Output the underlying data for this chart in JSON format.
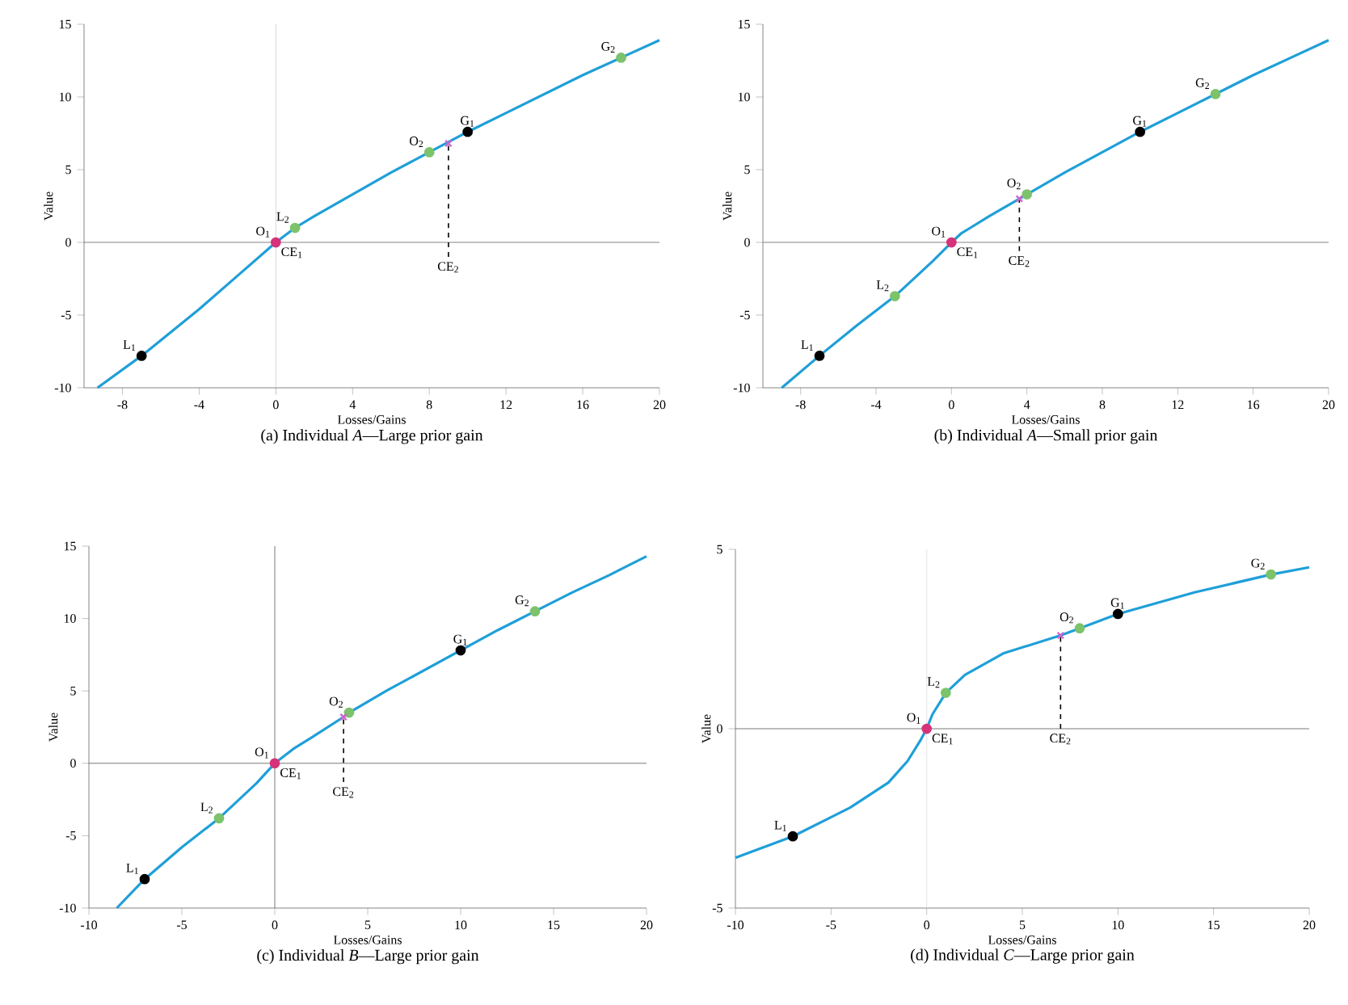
{
  "chart_data": [
    {
      "type": "line",
      "title": "(a) Individual *A*—Large prior gain",
      "xlabel": "Losses/Gains",
      "ylabel": "Value",
      "xlim": [
        -10,
        20
      ],
      "ylim": [
        -10,
        15
      ],
      "xticks": [
        -8,
        -4,
        0,
        4,
        8,
        12,
        16,
        20
      ],
      "yticks": [
        -10,
        -5,
        0,
        5,
        10,
        15
      ],
      "series": [
        {
          "type": "line",
          "color": "#1f9fd8",
          "marker": "none",
          "x": [
            -9.3,
            -7,
            -4,
            -2,
            0,
            1,
            2,
            4,
            6,
            8,
            10,
            12,
            14,
            16,
            18,
            20
          ],
          "values": [
            -10,
            -7.8,
            -4.6,
            -2.3,
            0,
            1.0,
            1.8,
            3.3,
            4.8,
            6.2,
            7.6,
            8.9,
            10.2,
            11.5,
            12.7,
            13.9
          ]
        },
        {
          "type": "scatter",
          "color": "#000000",
          "marker": "circle",
          "x": [
            -7,
            10
          ],
          "values": [
            -7.8,
            7.6
          ]
        },
        {
          "type": "scatter",
          "color": "#7cc36b",
          "marker": "circle",
          "x": [
            1,
            8,
            18
          ],
          "values": [
            1.0,
            6.2,
            12.7
          ]
        },
        {
          "type": "scatter",
          "color": "#d6337a",
          "marker": "circle",
          "x": [
            0
          ],
          "values": [
            0
          ]
        },
        {
          "type": "scatter",
          "color": "#cc66cc",
          "marker": "cross",
          "x": [
            9
          ],
          "values": [
            6.8
          ]
        },
        {
          "type": "line",
          "color": "#000000",
          "marker": "none",
          "line_style": "dashed",
          "x": [
            9,
            9
          ],
          "values": [
            -1,
            6.8
          ]
        }
      ],
      "ref_lines": [
        {
          "axis": "y",
          "value": 0,
          "color": "#666666"
        },
        {
          "axis": "x",
          "value": 0,
          "color": "#cccccc"
        }
      ],
      "annotations": [
        {
          "text": "L$_{1}$",
          "x": -7,
          "y": -7.8
        },
        {
          "text": "L$_{2}$",
          "x": 1,
          "y": 1.0
        },
        {
          "text": "O$_{1}$",
          "x": 0,
          "y": 0
        },
        {
          "text": "CE$_{1}$",
          "x": 0,
          "y": 0
        },
        {
          "text": "O$_{2}$",
          "x": 8,
          "y": 6.2
        },
        {
          "text": "CE$_{2}$",
          "x": 9,
          "y": -1
        },
        {
          "text": "G$_{1}$",
          "x": 10,
          "y": 7.6
        },
        {
          "text": "G$_{2}$",
          "x": 18,
          "y": 12.7
        }
      ]
    },
    {
      "type": "line",
      "title": "(b) Individual *A*—Small prior gain",
      "xlabel": "Losses/Gains",
      "ylabel": "Value",
      "xlim": [
        -10,
        20
      ],
      "ylim": [
        -10,
        15
      ],
      "xticks": [
        -8,
        -4,
        0,
        4,
        8,
        12,
        16,
        20
      ],
      "yticks": [
        -10,
        -5,
        0,
        5,
        10,
        15
      ],
      "series": [
        {
          "type": "line",
          "color": "#1f9fd8",
          "marker": "none",
          "x": [
            -9,
            -7,
            -5,
            -3,
            -1,
            0,
            0.5,
            1,
            2,
            3.6,
            4,
            6,
            8,
            10,
            12,
            14,
            16,
            18,
            20
          ],
          "values": [
            -10,
            -7.8,
            -5.7,
            -3.7,
            -1.3,
            0,
            0.6,
            1.0,
            1.8,
            3.0,
            3.3,
            4.8,
            6.2,
            7.6,
            8.9,
            10.2,
            11.5,
            12.7,
            13.9
          ]
        },
        {
          "type": "scatter",
          "color": "#000000",
          "marker": "circle",
          "x": [
            -7,
            10
          ],
          "values": [
            -7.8,
            7.6
          ]
        },
        {
          "type": "scatter",
          "color": "#7cc36b",
          "marker": "circle",
          "x": [
            -3,
            4,
            14
          ],
          "values": [
            -3.7,
            3.3,
            10.2
          ]
        },
        {
          "type": "scatter",
          "color": "#d6337a",
          "marker": "circle",
          "x": [
            0
          ],
          "values": [
            0
          ]
        },
        {
          "type": "scatter",
          "color": "#cc66cc",
          "marker": "cross",
          "x": [
            3.6
          ],
          "values": [
            3.0
          ]
        },
        {
          "type": "line",
          "color": "#000000",
          "marker": "none",
          "line_style": "dashed",
          "x": [
            3.6,
            3.6
          ],
          "values": [
            -0.6,
            3.0
          ]
        }
      ],
      "ref_lines": [
        {
          "axis": "y",
          "value": 0,
          "color": "#666666"
        }
      ],
      "annotations": [
        {
          "text": "L$_{1}$",
          "x": -7,
          "y": -7.8
        },
        {
          "text": "L$_{2}$",
          "x": -3,
          "y": -3.7
        },
        {
          "text": "O$_{1}$",
          "x": 0,
          "y": 0
        },
        {
          "text": "CE$_{1}$",
          "x": 0,
          "y": 0
        },
        {
          "text": "O$_{2}$",
          "x": 4,
          "y": 3.3
        },
        {
          "text": "CE$_{2}$",
          "x": 3.6,
          "y": -0.6
        },
        {
          "text": "G$_{1}$",
          "x": 10,
          "y": 7.6
        },
        {
          "text": "G$_{2}$",
          "x": 14,
          "y": 10.2
        }
      ]
    },
    {
      "type": "line",
      "title": "(c) Individual *B*—Large prior gain",
      "xlabel": "Losses/Gains",
      "ylabel": "Value",
      "xlim": [
        -10,
        20
      ],
      "ylim": [
        -10,
        15
      ],
      "xticks": [
        -10,
        -5,
        0,
        5,
        10,
        15,
        20
      ],
      "yticks": [
        -10,
        -5,
        0,
        5,
        10,
        15
      ],
      "series": [
        {
          "type": "line",
          "color": "#1f9fd8",
          "marker": "none",
          "x": [
            -8.5,
            -7,
            -5,
            -3,
            -1,
            0,
            1,
            2,
            3.7,
            4,
            6,
            8,
            10,
            12,
            14,
            16,
            18,
            20
          ],
          "values": [
            -10,
            -8,
            -5.8,
            -3.8,
            -1.4,
            0,
            1.0,
            1.8,
            3.2,
            3.5,
            5.0,
            6.4,
            7.8,
            9.2,
            10.5,
            11.8,
            13.0,
            14.3
          ]
        },
        {
          "type": "scatter",
          "color": "#000000",
          "marker": "circle",
          "x": [
            -7,
            10
          ],
          "values": [
            -8,
            7.8
          ]
        },
        {
          "type": "scatter",
          "color": "#7cc36b",
          "marker": "circle",
          "x": [
            -3,
            4,
            14
          ],
          "values": [
            -3.8,
            3.5,
            10.5
          ]
        },
        {
          "type": "scatter",
          "color": "#d6337a",
          "marker": "circle",
          "x": [
            0
          ],
          "values": [
            0
          ]
        },
        {
          "type": "scatter",
          "color": "#cc66cc",
          "marker": "cross",
          "x": [
            3.7
          ],
          "values": [
            3.2
          ]
        },
        {
          "type": "line",
          "color": "#000000",
          "marker": "none",
          "line_style": "dashed",
          "x": [
            3.7,
            3.7
          ],
          "values": [
            -1.3,
            3.2
          ]
        }
      ],
      "ref_lines": [
        {
          "axis": "y",
          "value": 0,
          "color": "#555555"
        },
        {
          "axis": "x",
          "value": 0,
          "color": "#555555"
        }
      ],
      "annotations": [
        {
          "text": "L$_{1}$",
          "x": -7,
          "y": -8
        },
        {
          "text": "L$_{2}$",
          "x": -3,
          "y": -3.8
        },
        {
          "text": "O$_{1}$",
          "x": 0,
          "y": 0
        },
        {
          "text": "CE$_{1}$",
          "x": 0,
          "y": 0
        },
        {
          "text": "O$_{2}$",
          "x": 4,
          "y": 3.5
        },
        {
          "text": "CE$_{2}$",
          "x": 3.7,
          "y": -1.3
        },
        {
          "text": "G$_{1}$",
          "x": 10,
          "y": 7.8
        },
        {
          "text": "G$_{2}$",
          "x": 14,
          "y": 10.5
        }
      ]
    },
    {
      "type": "line",
      "title": "(d) Individual *C*—Large prior gain",
      "xlabel": "Losses/Gains",
      "ylabel": "Value",
      "xlim": [
        -10,
        20
      ],
      "ylim": [
        -5,
        5
      ],
      "xticks": [
        -10,
        -5,
        0,
        5,
        10,
        15,
        20
      ],
      "yticks": [
        -5,
        0,
        5
      ],
      "series": [
        {
          "type": "line",
          "color": "#1f9fd8",
          "marker": "none",
          "x": [
            -10,
            -7,
            -4,
            -2,
            -1,
            -0.3,
            0,
            0.3,
            1,
            2,
            4,
            7,
            8,
            10,
            14,
            18,
            20
          ],
          "values": [
            -3.6,
            -3.0,
            -2.2,
            -1.5,
            -0.9,
            -0.3,
            0,
            0.4,
            1.0,
            1.5,
            2.1,
            2.6,
            2.8,
            3.2,
            3.8,
            4.3,
            4.5
          ]
        },
        {
          "type": "scatter",
          "color": "#000000",
          "marker": "circle",
          "x": [
            -7,
            10
          ],
          "values": [
            -3.0,
            3.2
          ]
        },
        {
          "type": "scatter",
          "color": "#7cc36b",
          "marker": "circle",
          "x": [
            1,
            8,
            18
          ],
          "values": [
            1.0,
            2.8,
            4.3
          ]
        },
        {
          "type": "scatter",
          "color": "#d6337a",
          "marker": "circle",
          "x": [
            0
          ],
          "values": [
            0
          ]
        },
        {
          "type": "scatter",
          "color": "#cc66cc",
          "marker": "cross",
          "x": [
            7
          ],
          "values": [
            2.6
          ]
        },
        {
          "type": "line",
          "color": "#000000",
          "marker": "none",
          "line_style": "dashed",
          "x": [
            7,
            7
          ],
          "values": [
            0,
            2.6
          ]
        }
      ],
      "ref_lines": [
        {
          "axis": "y",
          "value": 0,
          "color": "#555555"
        },
        {
          "axis": "x",
          "value": 0,
          "color": "#dddddd"
        }
      ],
      "annotations": [
        {
          "text": "L$_{1}$",
          "x": -7,
          "y": -3.0
        },
        {
          "text": "L$_{2}$",
          "x": 1,
          "y": 1.0
        },
        {
          "text": "O$_{1}$",
          "x": 0,
          "y": 0
        },
        {
          "text": "CE$_{1}$",
          "x": 0,
          "y": 0
        },
        {
          "text": "O$_{2}$",
          "x": 8,
          "y": 2.8
        },
        {
          "text": "CE$_{2}$",
          "x": 7,
          "y": 0
        },
        {
          "text": "G$_{1}$",
          "x": 10,
          "y": 3.2
        },
        {
          "text": "G$_{2}$",
          "x": 18,
          "y": 4.3
        }
      ]
    }
  ]
}
